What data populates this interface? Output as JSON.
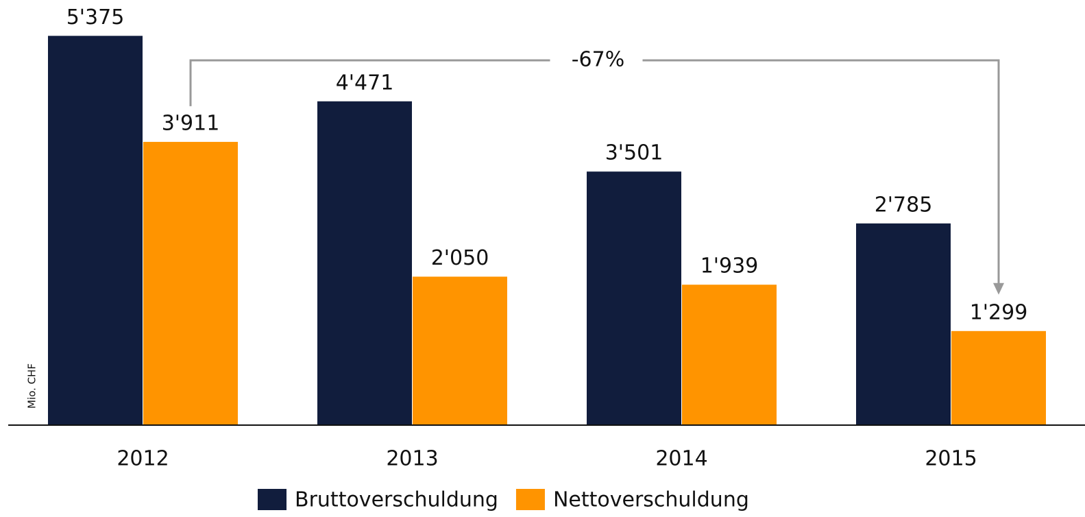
{
  "chart_data": {
    "type": "bar",
    "y_axis_label": "Mio. CHF",
    "categories": [
      "2012",
      "2013",
      "2014",
      "2015"
    ],
    "series": [
      {
        "name": "Bruttoverschuldung",
        "color": "#111d3d",
        "values": [
          5375,
          4471,
          3501,
          2785
        ],
        "value_labels": [
          "5'375",
          "4'471",
          "3'501",
          "2'785"
        ]
      },
      {
        "name": "Nettoverschuldung",
        "color": "#ff9400",
        "values": [
          3911,
          2050,
          1939,
          1299
        ],
        "value_labels": [
          "3'911",
          "2'050",
          "1'939",
          "1'299"
        ]
      }
    ],
    "annotation": "-67%",
    "ylim": [
      0,
      5870
    ],
    "legend": "bottom"
  }
}
